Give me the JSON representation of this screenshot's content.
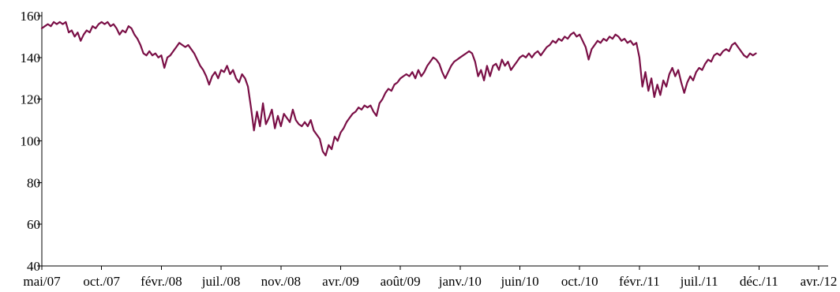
{
  "chart_data": {
    "type": "line",
    "title": "",
    "xlabel": "",
    "ylabel": "",
    "ylim": [
      40,
      160
    ],
    "yticks": [
      40,
      60,
      80,
      100,
      120,
      140,
      160
    ],
    "xticks": [
      "mai/07",
      "oct./07",
      "févr./08",
      "juil./08",
      "nov./08",
      "avr./09",
      "août/09",
      "janv./10",
      "juin/10",
      "oct./10",
      "févr./11",
      "juil./11",
      "déc./11",
      "avr./12"
    ],
    "grid": false,
    "legend": "none",
    "colors": {
      "line": "#7a0f46",
      "axis": "#000000"
    },
    "series": [
      {
        "values": [
          [
            0,
            154
          ],
          [
            0.05,
            155
          ],
          [
            0.1,
            156
          ],
          [
            0.15,
            155
          ],
          [
            0.2,
            157
          ],
          [
            0.25,
            156
          ],
          [
            0.3,
            157
          ],
          [
            0.35,
            156
          ],
          [
            0.4,
            157
          ],
          [
            0.45,
            152
          ],
          [
            0.5,
            153
          ],
          [
            0.55,
            150
          ],
          [
            0.6,
            152
          ],
          [
            0.65,
            148
          ],
          [
            0.7,
            151
          ],
          [
            0.75,
            153
          ],
          [
            0.8,
            152
          ],
          [
            0.85,
            155
          ],
          [
            0.9,
            154
          ],
          [
            0.95,
            156
          ],
          [
            1.0,
            157
          ],
          [
            1.05,
            156
          ],
          [
            1.1,
            157
          ],
          [
            1.15,
            155
          ],
          [
            1.2,
            156
          ],
          [
            1.25,
            154
          ],
          [
            1.3,
            151
          ],
          [
            1.35,
            153
          ],
          [
            1.4,
            152
          ],
          [
            1.45,
            155
          ],
          [
            1.5,
            154
          ],
          [
            1.55,
            151
          ],
          [
            1.6,
            149
          ],
          [
            1.65,
            146
          ],
          [
            1.7,
            142
          ],
          [
            1.75,
            141
          ],
          [
            1.8,
            143
          ],
          [
            1.85,
            141
          ],
          [
            1.9,
            142
          ],
          [
            1.95,
            140
          ],
          [
            2.0,
            141
          ],
          [
            2.05,
            135
          ],
          [
            2.1,
            140
          ],
          [
            2.15,
            141
          ],
          [
            2.2,
            143
          ],
          [
            2.25,
            145
          ],
          [
            2.3,
            147
          ],
          [
            2.35,
            146
          ],
          [
            2.4,
            145
          ],
          [
            2.45,
            146
          ],
          [
            2.5,
            144
          ],
          [
            2.55,
            142
          ],
          [
            2.6,
            139
          ],
          [
            2.65,
            136
          ],
          [
            2.7,
            134
          ],
          [
            2.75,
            131
          ],
          [
            2.8,
            127
          ],
          [
            2.85,
            131
          ],
          [
            2.9,
            133
          ],
          [
            2.95,
            130
          ],
          [
            3.0,
            134
          ],
          [
            3.05,
            133
          ],
          [
            3.1,
            136
          ],
          [
            3.15,
            132
          ],
          [
            3.2,
            134
          ],
          [
            3.25,
            130
          ],
          [
            3.3,
            128
          ],
          [
            3.35,
            132
          ],
          [
            3.4,
            130
          ],
          [
            3.45,
            126
          ],
          [
            3.5,
            116
          ],
          [
            3.55,
            105
          ],
          [
            3.6,
            114
          ],
          [
            3.65,
            107
          ],
          [
            3.7,
            118
          ],
          [
            3.75,
            108
          ],
          [
            3.8,
            111
          ],
          [
            3.85,
            115
          ],
          [
            3.9,
            106
          ],
          [
            3.95,
            112
          ],
          [
            4.0,
            107
          ],
          [
            4.05,
            113
          ],
          [
            4.1,
            111
          ],
          [
            4.15,
            109
          ],
          [
            4.2,
            115
          ],
          [
            4.25,
            110
          ],
          [
            4.3,
            108
          ],
          [
            4.35,
            107
          ],
          [
            4.4,
            109
          ],
          [
            4.45,
            107
          ],
          [
            4.5,
            110
          ],
          [
            4.55,
            105
          ],
          [
            4.6,
            103
          ],
          [
            4.65,
            101
          ],
          [
            4.7,
            95
          ],
          [
            4.75,
            93
          ],
          [
            4.8,
            98
          ],
          [
            4.85,
            96
          ],
          [
            4.9,
            102
          ],
          [
            4.95,
            100
          ],
          [
            5.0,
            104
          ],
          [
            5.05,
            106
          ],
          [
            5.1,
            109
          ],
          [
            5.15,
            111
          ],
          [
            5.2,
            113
          ],
          [
            5.25,
            114
          ],
          [
            5.3,
            116
          ],
          [
            5.35,
            115
          ],
          [
            5.4,
            117
          ],
          [
            5.45,
            116
          ],
          [
            5.5,
            117
          ],
          [
            5.55,
            114
          ],
          [
            5.6,
            112
          ],
          [
            5.65,
            118
          ],
          [
            5.7,
            120
          ],
          [
            5.75,
            123
          ],
          [
            5.8,
            125
          ],
          [
            5.85,
            124
          ],
          [
            5.9,
            127
          ],
          [
            5.95,
            128
          ],
          [
            6.0,
            130
          ],
          [
            6.05,
            131
          ],
          [
            6.1,
            132
          ],
          [
            6.15,
            131
          ],
          [
            6.2,
            133
          ],
          [
            6.25,
            130
          ],
          [
            6.3,
            134
          ],
          [
            6.35,
            131
          ],
          [
            6.4,
            133
          ],
          [
            6.45,
            136
          ],
          [
            6.5,
            138
          ],
          [
            6.55,
            140
          ],
          [
            6.6,
            139
          ],
          [
            6.65,
            137
          ],
          [
            6.7,
            133
          ],
          [
            6.75,
            130
          ],
          [
            6.8,
            133
          ],
          [
            6.85,
            136
          ],
          [
            6.9,
            138
          ],
          [
            6.95,
            139
          ],
          [
            7.0,
            140
          ],
          [
            7.05,
            141
          ],
          [
            7.1,
            142
          ],
          [
            7.15,
            143
          ],
          [
            7.2,
            142
          ],
          [
            7.25,
            138
          ],
          [
            7.3,
            131
          ],
          [
            7.35,
            134
          ],
          [
            7.4,
            129
          ],
          [
            7.45,
            136
          ],
          [
            7.5,
            131
          ],
          [
            7.55,
            136
          ],
          [
            7.6,
            137
          ],
          [
            7.65,
            134
          ],
          [
            7.7,
            139
          ],
          [
            7.75,
            136
          ],
          [
            7.8,
            138
          ],
          [
            7.85,
            134
          ],
          [
            7.9,
            136
          ],
          [
            7.95,
            138
          ],
          [
            8.0,
            140
          ],
          [
            8.05,
            141
          ],
          [
            8.1,
            140
          ],
          [
            8.15,
            142
          ],
          [
            8.2,
            140
          ],
          [
            8.25,
            142
          ],
          [
            8.3,
            143
          ],
          [
            8.35,
            141
          ],
          [
            8.4,
            143
          ],
          [
            8.45,
            145
          ],
          [
            8.5,
            146
          ],
          [
            8.55,
            148
          ],
          [
            8.6,
            147
          ],
          [
            8.65,
            149
          ],
          [
            8.7,
            148
          ],
          [
            8.75,
            150
          ],
          [
            8.8,
            149
          ],
          [
            8.85,
            151
          ],
          [
            8.9,
            152
          ],
          [
            8.95,
            150
          ],
          [
            9.0,
            151
          ],
          [
            9.05,
            148
          ],
          [
            9.1,
            145
          ],
          [
            9.15,
            139
          ],
          [
            9.2,
            144
          ],
          [
            9.25,
            146
          ],
          [
            9.3,
            148
          ],
          [
            9.35,
            147
          ],
          [
            9.4,
            149
          ],
          [
            9.45,
            148
          ],
          [
            9.5,
            150
          ],
          [
            9.55,
            149
          ],
          [
            9.6,
            151
          ],
          [
            9.65,
            150
          ],
          [
            9.7,
            148
          ],
          [
            9.75,
            149
          ],
          [
            9.8,
            147
          ],
          [
            9.85,
            148
          ],
          [
            9.9,
            146
          ],
          [
            9.95,
            147
          ],
          [
            10.0,
            140
          ],
          [
            10.05,
            126
          ],
          [
            10.1,
            133
          ],
          [
            10.15,
            124
          ],
          [
            10.2,
            130
          ],
          [
            10.25,
            121
          ],
          [
            10.3,
            127
          ],
          [
            10.35,
            122
          ],
          [
            10.4,
            129
          ],
          [
            10.45,
            126
          ],
          [
            10.5,
            132
          ],
          [
            10.55,
            135
          ],
          [
            10.6,
            131
          ],
          [
            10.65,
            134
          ],
          [
            10.7,
            128
          ],
          [
            10.75,
            123
          ],
          [
            10.8,
            128
          ],
          [
            10.85,
            131
          ],
          [
            10.9,
            129
          ],
          [
            10.95,
            133
          ],
          [
            11.0,
            135
          ],
          [
            11.05,
            134
          ],
          [
            11.1,
            137
          ],
          [
            11.15,
            139
          ],
          [
            11.2,
            138
          ],
          [
            11.25,
            141
          ],
          [
            11.3,
            142
          ],
          [
            11.35,
            141
          ],
          [
            11.4,
            143
          ],
          [
            11.45,
            144
          ],
          [
            11.5,
            143
          ],
          [
            11.55,
            146
          ],
          [
            11.6,
            147
          ],
          [
            11.65,
            145
          ],
          [
            11.7,
            143
          ],
          [
            11.75,
            141
          ],
          [
            11.8,
            140
          ],
          [
            11.85,
            142
          ],
          [
            11.9,
            141
          ],
          [
            11.95,
            142
          ]
        ]
      }
    ]
  }
}
